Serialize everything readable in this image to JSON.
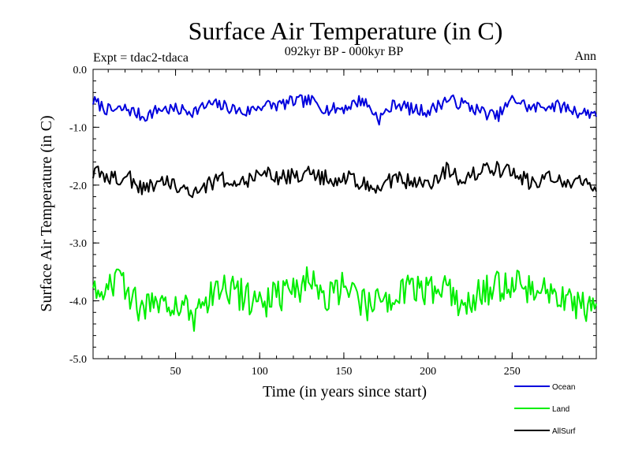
{
  "chart_data": {
    "type": "line",
    "title": "Surface Air Temperature (in C)",
    "subtitle": "092kyr BP - 000kyr BP",
    "left_label": "Expt = tdac2-tdaca",
    "right_label": "Ann",
    "xlabel": "Time (in years since start)",
    "ylabel": "Surface Air Temperature (in C)",
    "xlim": [
      1,
      300
    ],
    "ylim": [
      -5.0,
      0.0
    ],
    "x_ticks": [
      50,
      100,
      150,
      200,
      250
    ],
    "y_ticks": [
      0.0,
      -1.0,
      -2.0,
      -3.0,
      -4.0,
      -5.0
    ],
    "y_tick_labels": [
      "0.0",
      "-1.0",
      "-2.0",
      "-3.0",
      "-4.0",
      "-5.0"
    ],
    "x_step": 10,
    "series": [
      {
        "name": "Ocean",
        "color": "#0000dd",
        "values": [
          -0.55,
          -0.72,
          -0.68,
          -0.82,
          -0.68,
          -0.7,
          -0.72,
          -0.6,
          -0.65,
          -0.75,
          -0.62,
          -0.62,
          -0.55,
          -0.55,
          -0.7,
          -0.66,
          -0.52,
          -0.85,
          -0.58,
          -0.7,
          -0.72,
          -0.52,
          -0.6,
          -0.72,
          -0.82,
          -0.5,
          -0.68,
          -0.62,
          -0.65,
          -0.75
        ]
      },
      {
        "name": "Land",
        "color": "#00ee00",
        "values": [
          -3.85,
          -3.6,
          -3.8,
          -4.2,
          -3.9,
          -4.05,
          -4.3,
          -3.95,
          -3.8,
          -3.92,
          -4.05,
          -3.9,
          -3.85,
          -3.62,
          -3.95,
          -3.7,
          -4.08,
          -4.05,
          -3.92,
          -3.75,
          -3.85,
          -3.8,
          -4.05,
          -3.87,
          -3.75,
          -3.65,
          -3.8,
          -3.85,
          -3.95,
          -4.1
        ]
      },
      {
        "name": "AllSurf",
        "color": "#000000",
        "values": [
          -1.75,
          -1.9,
          -1.85,
          -2.08,
          -1.9,
          -2.02,
          -2.1,
          -1.95,
          -1.88,
          -1.94,
          -1.75,
          -1.88,
          -1.85,
          -1.8,
          -1.9,
          -1.88,
          -1.95,
          -2.05,
          -1.88,
          -1.95,
          -2.02,
          -1.75,
          -1.9,
          -1.75,
          -1.72,
          -1.8,
          -1.96,
          -1.88,
          -1.9,
          -1.97
        ]
      }
    ],
    "legend": "bottom-right"
  }
}
